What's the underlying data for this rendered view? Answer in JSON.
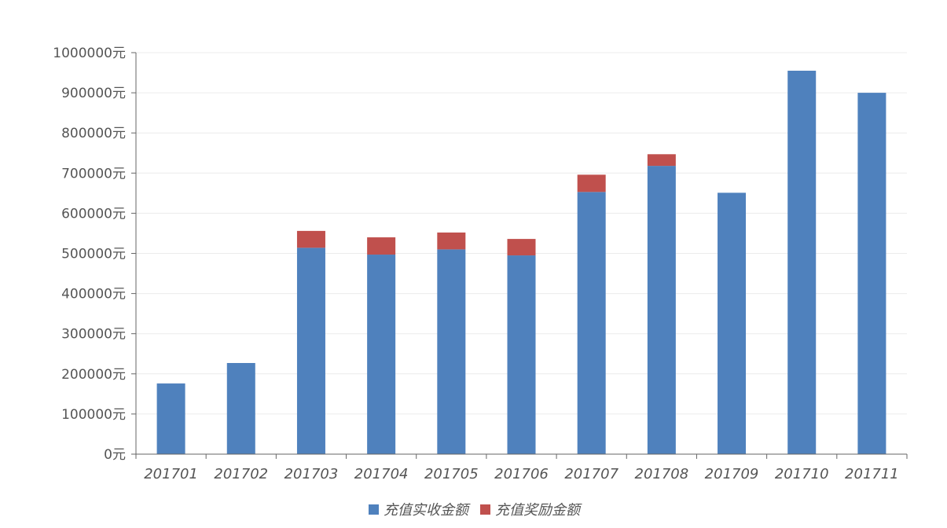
{
  "chart_data": {
    "type": "bar",
    "stacked": true,
    "categories": [
      "201701",
      "201702",
      "201703",
      "201704",
      "201705",
      "201706",
      "201707",
      "201708",
      "201709",
      "201710",
      "201711"
    ],
    "series": [
      {
        "name": "充值实收金额",
        "color": "#4f81bd",
        "values": [
          176000,
          227000,
          514000,
          497000,
          510000,
          495000,
          653000,
          718000,
          651000,
          955000,
          900000
        ]
      },
      {
        "name": "充值奖励金额",
        "color": "#c0504d",
        "values": [
          0,
          0,
          42000,
          43000,
          42000,
          41000,
          43000,
          29000,
          0,
          0,
          0
        ]
      }
    ],
    "ylim": [
      0,
      1000000
    ],
    "yticks": [
      0,
      100000,
      200000,
      300000,
      400000,
      500000,
      600000,
      700000,
      800000,
      900000,
      1000000
    ],
    "ytick_suffix": "元",
    "grid": true,
    "legend_position": "bottom"
  },
  "colors": {
    "axis": "#666666",
    "grid": "#ececec"
  }
}
